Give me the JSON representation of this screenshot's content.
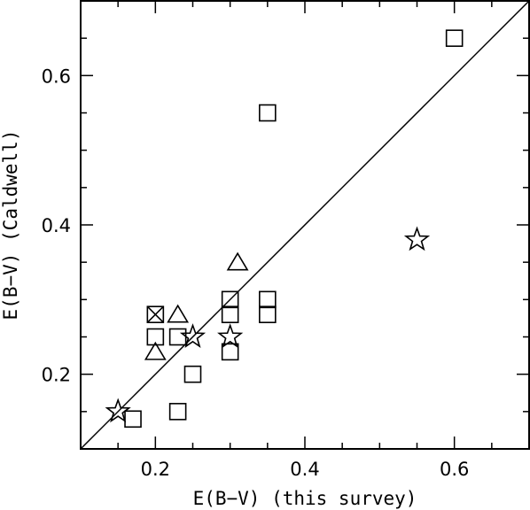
{
  "chart_data": {
    "type": "scatter",
    "title": "",
    "xlabel": "E(B−V) (this survey)",
    "ylabel": "E(B−V) (Caldwell)",
    "xlim": [
      0.1,
      0.7
    ],
    "ylim": [
      0.1,
      0.7
    ],
    "x_ticks": [
      0.2,
      0.4,
      0.6
    ],
    "y_ticks": [
      0.2,
      0.4,
      0.6
    ],
    "x_tick_labels": [
      "0.2",
      "0.4",
      "0.6"
    ],
    "y_tick_labels": [
      "0.2",
      "0.4",
      "0.6"
    ],
    "minor_tick_step": 0.05,
    "grid": false,
    "reference_line": {
      "type": "y=x"
    },
    "series": [
      {
        "marker": "square",
        "points": [
          {
            "x": 0.6,
            "y": 0.65
          },
          {
            "x": 0.35,
            "y": 0.55
          },
          {
            "x": 0.3,
            "y": 0.3
          },
          {
            "x": 0.3,
            "y": 0.28
          },
          {
            "x": 0.35,
            "y": 0.3
          },
          {
            "x": 0.35,
            "y": 0.28
          },
          {
            "x": 0.2,
            "y": 0.25
          },
          {
            "x": 0.23,
            "y": 0.25
          },
          {
            "x": 0.3,
            "y": 0.23
          },
          {
            "x": 0.25,
            "y": 0.2
          },
          {
            "x": 0.23,
            "y": 0.15
          },
          {
            "x": 0.17,
            "y": 0.14
          }
        ]
      },
      {
        "marker": "crossed-square",
        "points": [
          {
            "x": 0.2,
            "y": 0.28
          }
        ]
      },
      {
        "marker": "triangle",
        "points": [
          {
            "x": 0.31,
            "y": 0.35
          },
          {
            "x": 0.23,
            "y": 0.28
          },
          {
            "x": 0.2,
            "y": 0.23
          }
        ]
      },
      {
        "marker": "star",
        "points": [
          {
            "x": 0.55,
            "y": 0.38
          },
          {
            "x": 0.25,
            "y": 0.25
          },
          {
            "x": 0.3,
            "y": 0.25
          },
          {
            "x": 0.15,
            "y": 0.15
          }
        ]
      }
    ]
  }
}
